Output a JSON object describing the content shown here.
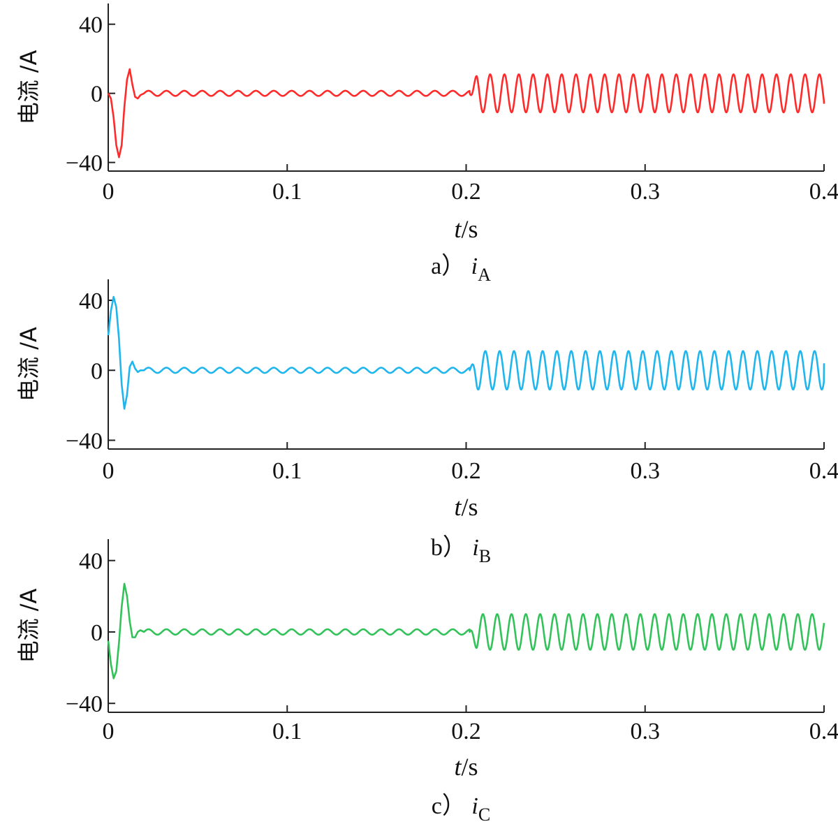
{
  "chart_data": [
    {
      "type": "line",
      "panel": "a",
      "caption_prefix": "a）",
      "caption_var": "i",
      "caption_sub": "A",
      "xlabel_var": "t",
      "xlabel_unit": "/s",
      "ylabel": "电流 /A",
      "xlim": [
        0,
        0.4
      ],
      "ylim": [
        -45,
        52
      ],
      "xticks": [
        0,
        0.1,
        0.2,
        0.3,
        0.4
      ],
      "xtick_labels": [
        "0",
        "0.1",
        "0.2",
        "0.3",
        "0.4"
      ],
      "yticks": [
        -40,
        0,
        40
      ],
      "ytick_labels": [
        "−40",
        "0",
        "40"
      ],
      "color": "#ff2a2a",
      "series": [
        {
          "x": [
            0,
            0.002,
            0.004,
            0.006,
            0.008,
            0.01,
            0.012,
            0.014,
            0.016,
            0.02,
            0.03,
            0.05,
            0.1,
            0.15,
            0.2,
            0.202,
            0.25,
            0.3,
            0.35,
            0.4
          ],
          "values": [
            0,
            -8,
            -25,
            -37,
            -30,
            0,
            14,
            3,
            -2,
            0,
            1,
            -1,
            0,
            1,
            0,
            -5,
            11,
            -11,
            10,
            -6
          ],
          "transient": {
            "t_end": 0.02,
            "x": [
              0,
              0.0015,
              0.003,
              0.0045,
              0.006,
              0.0075,
              0.009,
              0.0105,
              0.012,
              0.0135,
              0.015,
              0.0165,
              0.018,
              0.02
            ],
            "y": [
              0,
              -3,
              -14,
              -30,
              -37,
              -30,
              -8,
              8,
              14,
              5,
              -2,
              -3,
              -1,
              0
            ]
          },
          "ripple_amp": 1.5,
          "step_time": 0.202,
          "steady_amp": 11,
          "steady_period": 0.008,
          "steady_phase": 3.6,
          "end_value": -6
        }
      ]
    },
    {
      "type": "line",
      "panel": "b",
      "caption_prefix": "b）",
      "caption_var": "i",
      "caption_sub": "B",
      "xlabel_var": "t",
      "xlabel_unit": "/s",
      "ylabel": "电流 /A",
      "xlim": [
        0,
        0.4
      ],
      "ylim": [
        -45,
        52
      ],
      "xticks": [
        0,
        0.1,
        0.2,
        0.3,
        0.4
      ],
      "xtick_labels": [
        "0",
        "0.1",
        "0.2",
        "0.3",
        "0.4"
      ],
      "yticks": [
        -40,
        0,
        40
      ],
      "ytick_labels": [
        "−40",
        "0",
        "40"
      ],
      "color": "#1fb6ee",
      "series": [
        {
          "x": [
            0,
            0.002,
            0.004,
            0.006,
            0.008,
            0.011,
            0.014,
            0.02,
            0.05,
            0.1,
            0.15,
            0.2,
            0.202,
            0.25,
            0.3,
            0.35,
            0.4
          ],
          "values": [
            20,
            38,
            42,
            28,
            -5,
            -22,
            5,
            0,
            -1,
            0,
            1,
            0,
            -12,
            11,
            -11,
            11,
            4
          ],
          "transient": {
            "t_end": 0.02,
            "x": [
              0,
              0.0015,
              0.003,
              0.0045,
              0.006,
              0.0075,
              0.009,
              0.0105,
              0.012,
              0.0135,
              0.015,
              0.0165,
              0.018,
              0.02
            ],
            "y": [
              20,
              34,
              42,
              36,
              18,
              -8,
              -22,
              -14,
              2,
              5,
              1,
              -1,
              0,
              0
            ]
          },
          "ripple_amp": 1.5,
          "step_time": 0.202,
          "steady_amp": 11,
          "steady_period": 0.008,
          "steady_phase": 5.7,
          "end_value": 4
        }
      ]
    },
    {
      "type": "line",
      "panel": "c",
      "caption_prefix": "c）",
      "caption_var": "i",
      "caption_sub": "C",
      "xlabel_var": "t",
      "xlabel_unit": "/s",
      "ylabel": "电流 /A",
      "xlim": [
        0,
        0.4
      ],
      "ylim": [
        -45,
        52
      ],
      "xticks": [
        0,
        0.1,
        0.2,
        0.3,
        0.4
      ],
      "xtick_labels": [
        "0",
        "0.1",
        "0.2",
        "0.3",
        "0.4"
      ],
      "yticks": [
        -40,
        0,
        40
      ],
      "ytick_labels": [
        "−40",
        "0",
        "40"
      ],
      "color": "#33c25a",
      "series": [
        {
          "x": [
            0,
            0.002,
            0.004,
            0.007,
            0.01,
            0.013,
            0.016,
            0.02,
            0.05,
            0.1,
            0.15,
            0.2,
            0.202,
            0.25,
            0.3,
            0.35,
            0.4
          ],
          "values": [
            -5,
            -20,
            -26,
            -10,
            27,
            10,
            -2,
            0,
            -1,
            0,
            1,
            0,
            8,
            -10,
            10,
            -10,
            5
          ],
          "transient": {
            "t_end": 0.02,
            "x": [
              0,
              0.0015,
              0.003,
              0.0045,
              0.006,
              0.0075,
              0.009,
              0.0105,
              0.012,
              0.0135,
              0.015,
              0.0165,
              0.018,
              0.02
            ],
            "y": [
              -5,
              -18,
              -26,
              -22,
              -6,
              14,
              27,
              20,
              6,
              -3,
              -3,
              0,
              1,
              0
            ]
          },
          "ripple_amp": 1.5,
          "step_time": 0.202,
          "steady_amp": 10,
          "steady_period": 0.008,
          "steady_phase": 0.5,
          "end_value": 5
        }
      ]
    }
  ]
}
